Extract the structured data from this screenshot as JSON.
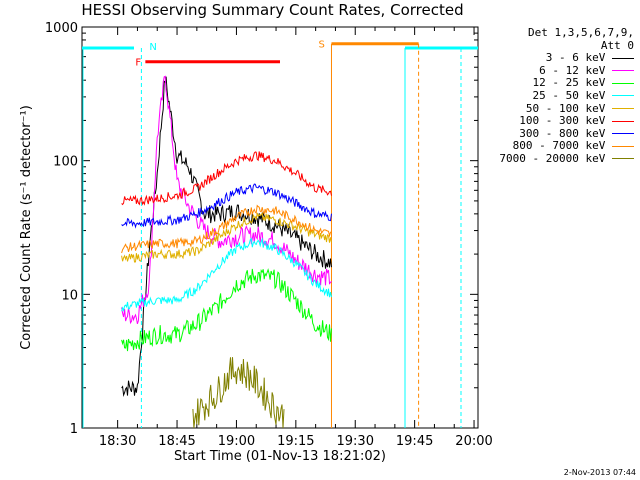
{
  "chart_data": {
    "type": "line",
    "title": "HESSI Observing Summary Count Rates, Corrected",
    "xlabel": "Start Time (01-Nov-13 18:21:02)",
    "ylabel": "Corrected Count Rate (s⁻¹ detector⁻¹)",
    "yscale": "log",
    "ylim": [
      1,
      1000
    ],
    "xlim": [
      "18:21",
      "20:01"
    ],
    "x_ticks": [
      "18:30",
      "18:45",
      "19:00",
      "19:15",
      "19:30",
      "19:45",
      "20:00"
    ],
    "y_ticks": [
      "1",
      "10",
      "100",
      "1000"
    ],
    "legend": {
      "header": [
        "Det 1,3,5,6,7,9,",
        "Att 0"
      ],
      "placement": "right"
    },
    "series": [
      {
        "name": "3 - 6 keV",
        "color": "#000000",
        "x": [
          "18:31",
          "18:35",
          "18:38",
          "18:40",
          "18:42",
          "18:45",
          "18:48",
          "18:52",
          "18:56",
          "19:00",
          "19:05",
          "19:10",
          "19:15",
          "19:20",
          "19:24"
        ],
        "y": [
          2,
          2,
          22,
          80,
          420,
          110,
          90,
          40,
          40,
          42,
          38,
          33,
          26,
          20,
          17
        ]
      },
      {
        "name": "6 - 12 keV",
        "color": "#ff00ff",
        "x": [
          "18:31",
          "18:35",
          "18:38",
          "18:40",
          "18:42",
          "18:45",
          "18:48",
          "18:52",
          "18:56",
          "19:00",
          "19:05",
          "19:10",
          "19:15",
          "19:20",
          "19:24"
        ],
        "y": [
          7,
          7,
          12,
          150,
          440,
          70,
          45,
          30,
          25,
          27,
          28,
          25,
          18,
          14,
          13
        ]
      },
      {
        "name": "12 - 25 keV",
        "color": "#00ff00",
        "x": [
          "18:31",
          "18:35",
          "18:40",
          "18:45",
          "18:50",
          "18:55",
          "19:00",
          "19:05",
          "19:10",
          "19:15",
          "19:20",
          "19:24"
        ],
        "y": [
          4,
          4.5,
          5,
          5,
          6,
          8,
          12,
          14,
          13,
          9,
          6,
          5
        ]
      },
      {
        "name": "25 - 50 keV",
        "color": "#00ffff",
        "x": [
          "18:31",
          "18:35",
          "18:40",
          "18:45",
          "18:50",
          "18:55",
          "19:00",
          "19:05",
          "19:10",
          "19:15",
          "19:20",
          "19:24"
        ],
        "y": [
          8,
          8.5,
          9,
          9,
          11,
          16,
          22,
          25,
          22,
          17,
          12,
          10
        ]
      },
      {
        "name": "50 - 100 keV",
        "color": "#e0b000",
        "x": [
          "18:31",
          "18:35",
          "18:40",
          "18:45",
          "18:50",
          "18:55",
          "19:00",
          "19:05",
          "19:10",
          "19:15",
          "19:20",
          "19:24"
        ],
        "y": [
          18,
          19,
          20,
          20,
          21,
          26,
          33,
          38,
          36,
          32,
          28,
          26
        ]
      },
      {
        "name": "100 - 300 keV",
        "color": "#ff0000",
        "x": [
          "18:31",
          "18:35",
          "18:40",
          "18:45",
          "18:50",
          "18:55",
          "19:00",
          "19:05",
          "19:10",
          "19:15",
          "19:20",
          "19:24"
        ],
        "y": [
          50,
          50,
          52,
          55,
          62,
          80,
          100,
          110,
          100,
          80,
          62,
          58
        ]
      },
      {
        "name": "300 - 800 keV",
        "color": "#0000ff",
        "x": [
          "18:31",
          "18:35",
          "18:40",
          "18:45",
          "18:50",
          "18:55",
          "19:00",
          "19:05",
          "19:10",
          "19:15",
          "19:20",
          "19:24"
        ],
        "y": [
          34,
          34,
          35,
          36,
          40,
          48,
          58,
          63,
          58,
          48,
          40,
          38
        ]
      },
      {
        "name": "800 - 7000 keV",
        "color": "#ff8800",
        "x": [
          "18:31",
          "18:35",
          "18:40",
          "18:45",
          "18:50",
          "18:55",
          "19:00",
          "19:05",
          "19:10",
          "19:15",
          "19:20",
          "19:24"
        ],
        "y": [
          22,
          23,
          24,
          24,
          25,
          30,
          38,
          44,
          42,
          36,
          30,
          28
        ]
      },
      {
        "name": "7000 - 20000 keV",
        "color": "#808000",
        "x": [
          "18:49",
          "18:52",
          "18:55",
          "18:58",
          "19:00",
          "19:03",
          "19:06",
          "19:09",
          "19:12"
        ],
        "y": [
          1.2,
          1.5,
          1.8,
          2.5,
          2.8,
          2.5,
          2.0,
          1.5,
          1.2
        ]
      }
    ],
    "annotations": [
      {
        "label": "N",
        "color": "#00ffff",
        "x": "18:36"
      },
      {
        "label": "F",
        "color": "#ff0000",
        "x_start": "18:37",
        "x_end": "19:11",
        "y": 550
      },
      {
        "label": "S",
        "color": "#ff8800",
        "x_start": "19:24",
        "x_end": "19:46",
        "y": 750
      }
    ]
  },
  "stamp": "2-Nov-2013 07:44"
}
